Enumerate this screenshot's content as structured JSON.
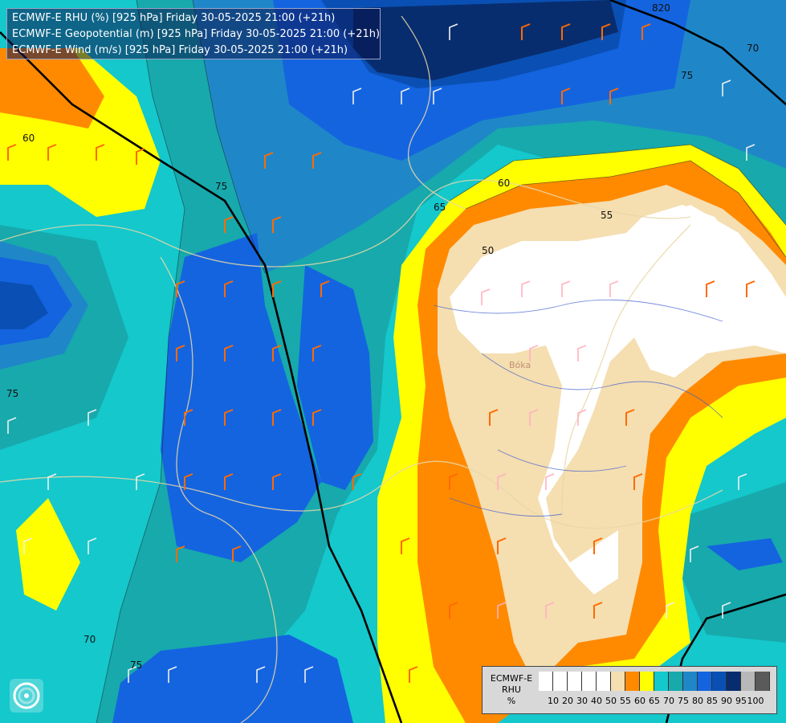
{
  "header": {
    "line1": "ECMWF-E RHU (%) [925 hPa] Friday 30-05-2025 21:00 (+21h)",
    "line2": "ECMWF-E Geopotential (m) [925 hPa] Friday 30-05-2025 21:00 (+21h)",
    "line3": "ECMWF-E Wind (m/s) [925 hPa] Friday 30-05-2025 21:00 (+21h)"
  },
  "legend": {
    "title_line1": "ECMWF-E",
    "title_line2": "RHU",
    "title_line3": "%",
    "swatch_colors": [
      "#ffffff",
      "#ffffff",
      "#ffffff",
      "#ffffff",
      "#ffffff",
      "#f5deb0",
      "#ff8a00",
      "#ffff00",
      "#14c8cc",
      "#17a9ac",
      "#1f87c8",
      "#1464e0",
      "#0a50b4",
      "#082d6e",
      "#b8b8b8",
      "#5a5a5a"
    ],
    "ticks": [
      "10",
      "20",
      "30",
      "40",
      "50",
      "55",
      "60",
      "65",
      "70",
      "75",
      "80",
      "85",
      "90",
      "95",
      "100"
    ]
  },
  "map_labels": {
    "contour_820": "820",
    "rhu_70_ne": "70",
    "rhu_75_ne": "75",
    "rhu_60_w": "60",
    "rhu_75_c": "75",
    "rhu_60_e": "60",
    "rhu_65_e": "65",
    "rhu_55_e": "55",
    "rhu_50_e": "50",
    "rhu_75_w": "75",
    "rhu_70_sw": "70",
    "rhu_75_sw": "75",
    "river_label": "Bóka"
  },
  "colors": {
    "rhu_100": "#ffffff",
    "rhu_55": "#f5deb0",
    "rhu_60": "#ff8a00",
    "rhu_65": "#ffff00",
    "rhu_70": "#14c8cc",
    "rhu_75": "#17a9ac",
    "rhu_80": "#1f87c8",
    "rhu_85": "#1464e0",
    "rhu_90": "#0a50b4",
    "rhu_95": "#082d6e"
  },
  "icons": {
    "logo": "ecmwf-swirl-logo",
    "wind": "wind-barb-icon"
  }
}
